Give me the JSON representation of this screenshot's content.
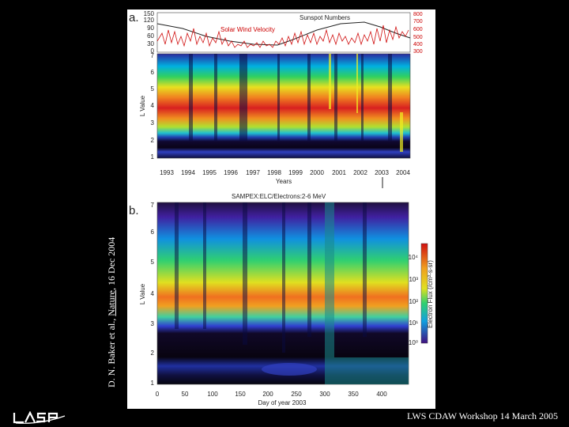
{
  "citation": {
    "authors": "D. N. Baker et al.,",
    "journal": "Nature",
    "date": "16 Dec 2004"
  },
  "footer": "LWS CDAW Workshop 14 March 2005",
  "logo": {
    "name": "LASP",
    "icon": "lasp-logo"
  },
  "panel_a": {
    "label": "a.",
    "top_left_ticks": [
      "150",
      "120",
      "90",
      "60",
      "30",
      "0"
    ],
    "top_right_ticks": [
      "800",
      "700",
      "600",
      "500",
      "400",
      "300"
    ],
    "sunspot_label": "Sunspot Numbers",
    "wind_label": "Solar Wind Velocity",
    "ylabel": "L Value",
    "y_ticks": [
      "7",
      "6",
      "5",
      "4",
      "3",
      "2",
      "1"
    ],
    "x_ticks": [
      "1993",
      "1994",
      "1995",
      "1996",
      "1997",
      "1998",
      "1999",
      "2000",
      "2001",
      "2002",
      "2003",
      "2004"
    ],
    "xlabel": "Years"
  },
  "panel_b": {
    "label": "b.",
    "title": "SAMPEX:ELC/Electrons:2-6 MeV",
    "ylabel": "L Value",
    "y_ticks": [
      "7",
      "6",
      "5",
      "4",
      "3",
      "2",
      "1"
    ],
    "x_ticks": [
      "0",
      "50",
      "100",
      "150",
      "200",
      "250",
      "300",
      "350",
      "400"
    ],
    "xlabel": "Day of year 2003",
    "colorbar_label": "Electron Flux (/cm²-s-sr)",
    "colorbar_ticks": [
      "10⁴",
      "10³",
      "10²",
      "10¹",
      "10⁰"
    ]
  }
}
